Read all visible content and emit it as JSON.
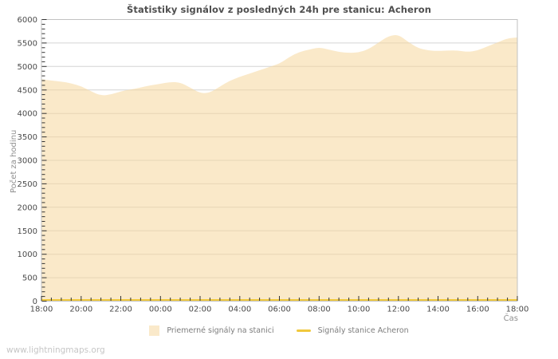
{
  "title": "Štatistiky signálov z posledných 24h pre stanicu: Acheron",
  "watermark": "www.lightningmaps.org",
  "colors": {
    "area_fill": "#f6d79e",
    "area_fill_opacity": 0.56,
    "station_line": "#f0c83c",
    "grid": "#d4d4d4",
    "border": "#c2c2c2",
    "tick": "#333333",
    "tick_label": "#4a4a4a",
    "axis_label": "#909090",
    "title_text": "#4f4f4f",
    "legend_text": "#7d7d7d",
    "legend_area_swatch": "#fae9ca",
    "watermark_text": "#c6c6c6"
  },
  "chart_data": {
    "type": "area",
    "title": "Štatistiky signálov z posledných 24h pre stanicu: Acheron",
    "xlabel": "Čas",
    "ylabel": "Počet za hodinu",
    "ylim": [
      0,
      6000
    ],
    "y_major_step": 500,
    "y_minor_step": 100,
    "x_major_every_minutes": 120,
    "x_minor_every_minutes": 30,
    "grid": "horizontal-major-only",
    "legend_position": "bottom-center",
    "x": [
      "18:00",
      "18:30",
      "19:00",
      "19:30",
      "20:00",
      "20:30",
      "21:00",
      "21:30",
      "22:00",
      "22:30",
      "23:00",
      "23:30",
      "00:00",
      "00:30",
      "01:00",
      "01:30",
      "02:00",
      "02:30",
      "03:00",
      "03:30",
      "04:00",
      "04:30",
      "05:00",
      "05:30",
      "06:00",
      "06:30",
      "07:00",
      "07:30",
      "08:00",
      "08:30",
      "09:00",
      "09:30",
      "10:00",
      "10:30",
      "11:00",
      "11:30",
      "12:00",
      "12:30",
      "13:00",
      "13:30",
      "14:00",
      "14:30",
      "15:00",
      "15:30",
      "16:00",
      "16:30",
      "17:00",
      "17:30",
      "18:00"
    ],
    "x_ticks_major": [
      "18:00",
      "20:00",
      "22:00",
      "00:00",
      "02:00",
      "04:00",
      "06:00",
      "08:00",
      "10:00",
      "12:00",
      "14:00",
      "16:00",
      "18:00"
    ],
    "series": [
      {
        "name": "Priemerné signály na stanici",
        "type": "area",
        "values": [
          4730,
          4700,
          4680,
          4640,
          4580,
          4470,
          4380,
          4400,
          4470,
          4510,
          4550,
          4600,
          4630,
          4670,
          4660,
          4550,
          4430,
          4440,
          4570,
          4700,
          4780,
          4850,
          4920,
          4990,
          5060,
          5200,
          5310,
          5360,
          5410,
          5360,
          5310,
          5290,
          5300,
          5370,
          5510,
          5650,
          5680,
          5520,
          5390,
          5340,
          5330,
          5340,
          5340,
          5310,
          5340,
          5430,
          5510,
          5600,
          5620
        ]
      },
      {
        "name": "Signály stanice Acheron",
        "type": "line",
        "values": [
          0,
          0,
          0,
          0,
          0,
          0,
          0,
          0,
          0,
          0,
          0,
          0,
          0,
          0,
          0,
          0,
          0,
          0,
          0,
          0,
          0,
          0,
          0,
          0,
          0,
          0,
          0,
          0,
          0,
          0,
          0,
          0,
          0,
          0,
          0,
          0,
          0,
          0,
          0,
          0,
          0,
          0,
          0,
          0,
          0,
          0,
          0,
          0,
          0
        ]
      }
    ]
  }
}
